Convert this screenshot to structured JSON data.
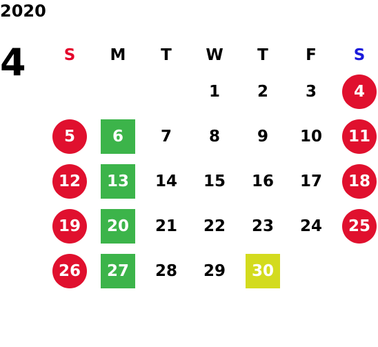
{
  "year": "2020",
  "month": "4",
  "colors": {
    "sunday_header": "#e4002b",
    "saturday_header": "#1a1adb",
    "holiday": "#e0102e",
    "green": "#3cb44a",
    "yellow": "#d3db1e"
  },
  "weekdays": [
    {
      "label": "S",
      "color": "#e4002b"
    },
    {
      "label": "M",
      "color": "#000000"
    },
    {
      "label": "T",
      "color": "#000000"
    },
    {
      "label": "W",
      "color": "#000000"
    },
    {
      "label": "T",
      "color": "#000000"
    },
    {
      "label": "F",
      "color": "#000000"
    },
    {
      "label": "S",
      "color": "#1a1adb"
    }
  ],
  "weeks": [
    [
      null,
      null,
      null,
      {
        "d": "1"
      },
      {
        "d": "2"
      },
      {
        "d": "3"
      },
      {
        "d": "4",
        "mark": "red-circle"
      }
    ],
    [
      {
        "d": "5",
        "mark": "red-circle"
      },
      {
        "d": "6",
        "mark": "green-square"
      },
      {
        "d": "7"
      },
      {
        "d": "8"
      },
      {
        "d": "9"
      },
      {
        "d": "10"
      },
      {
        "d": "11",
        "mark": "red-circle"
      }
    ],
    [
      {
        "d": "12",
        "mark": "red-circle"
      },
      {
        "d": "13",
        "mark": "green-square"
      },
      {
        "d": "14"
      },
      {
        "d": "15"
      },
      {
        "d": "16"
      },
      {
        "d": "17"
      },
      {
        "d": "18",
        "mark": "red-circle"
      }
    ],
    [
      {
        "d": "19",
        "mark": "red-circle"
      },
      {
        "d": "20",
        "mark": "green-square"
      },
      {
        "d": "21"
      },
      {
        "d": "22"
      },
      {
        "d": "23"
      },
      {
        "d": "24"
      },
      {
        "d": "25",
        "mark": "red-circle"
      }
    ],
    [
      {
        "d": "26",
        "mark": "red-circle"
      },
      {
        "d": "27",
        "mark": "green-square"
      },
      {
        "d": "28"
      },
      {
        "d": "29"
      },
      {
        "d": "30",
        "mark": "yellow-square"
      },
      null,
      null
    ]
  ]
}
